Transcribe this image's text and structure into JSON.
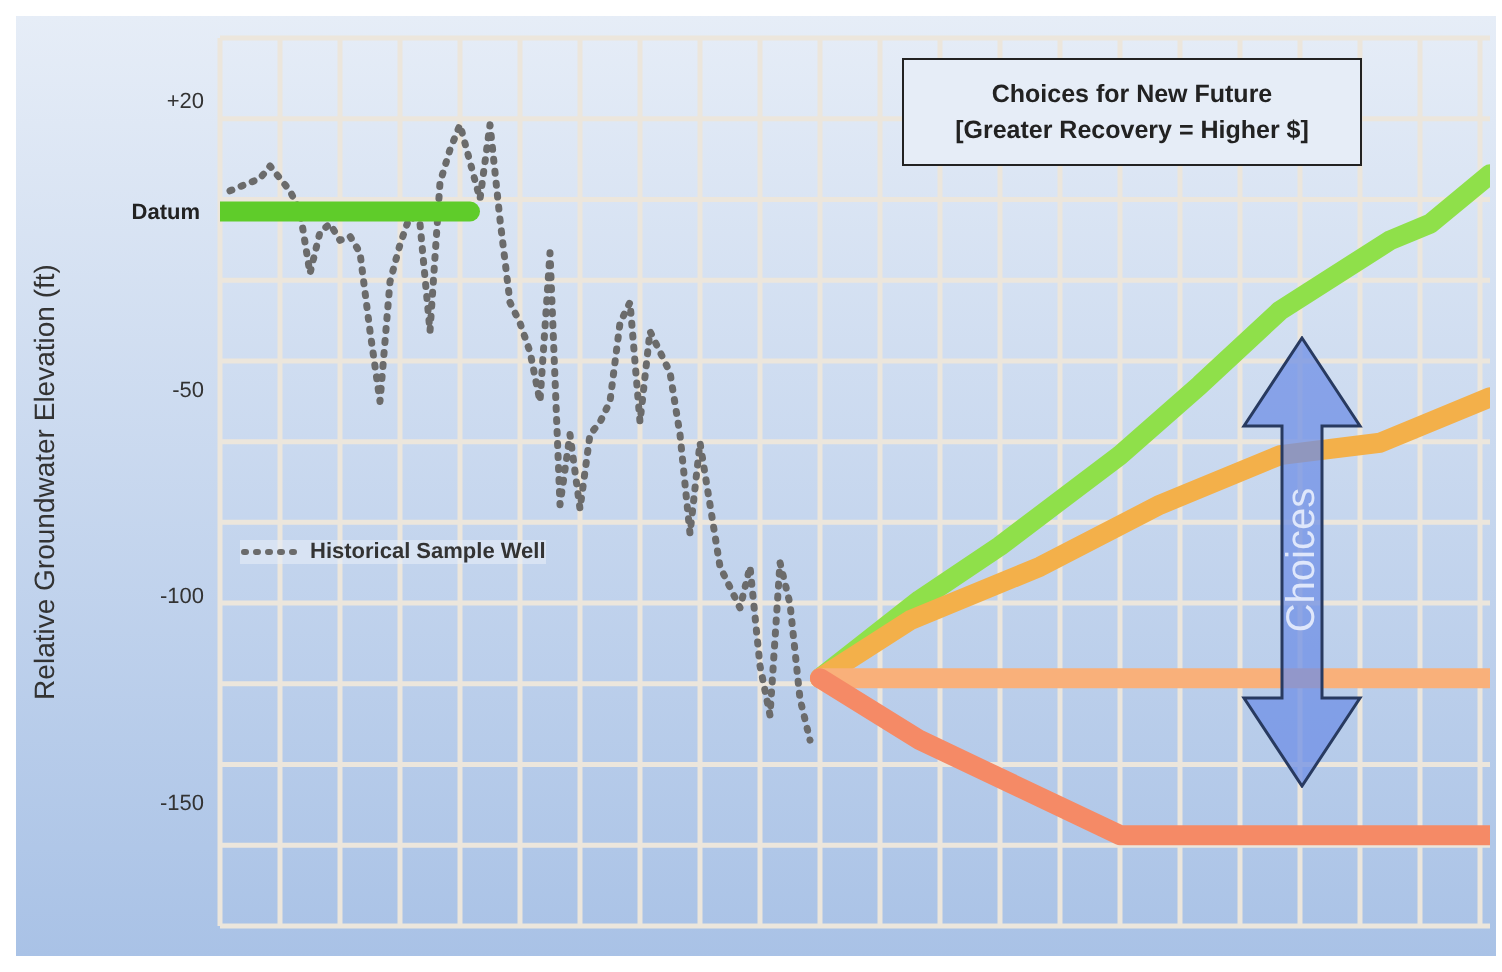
{
  "chart_data": {
    "type": "line",
    "title": "Choices for New Future",
    "subtitle": "[Greater Recovery = Higher $]",
    "ylabel": "Relative Groundwater Elevation (ft)",
    "annotations": [
      "Choices"
    ],
    "categories": [
      null,
      null,
      null,
      null,
      null,
      null,
      null,
      null,
      null,
      null,
      null,
      null,
      null,
      null,
      null,
      null,
      null,
      null,
      null,
      null,
      null,
      null,
      null,
      null,
      null,
      null,
      null,
      null,
      null,
      null,
      null,
      null,
      null,
      null,
      null,
      null,
      null,
      null,
      null,
      null,
      null,
      null,
      null,
      null,
      null,
      null,
      null,
      null,
      null,
      null,
      null,
      null,
      null,
      null,
      null,
      null,
      null,
      null,
      null,
      null,
      null,
      null,
      null,
      null,
      null,
      null,
      null,
      null,
      null,
      null,
      null,
      null,
      null,
      null,
      null,
      null,
      null,
      null,
      null,
      null,
      null,
      null,
      null,
      null,
      null,
      null,
      null,
      null,
      null,
      null,
      null,
      null,
      null,
      null,
      null,
      null,
      null,
      null,
      null,
      null,
      null,
      null,
      null,
      null,
      null,
      null,
      null,
      null,
      null,
      null,
      null,
      null,
      null,
      null,
      null,
      null,
      null,
      null,
      null,
      null,
      null,
      null,
      null,
      null,
      null,
      null,
      null,
      null
    ],
    "ylim": [
      -180,
      35
    ],
    "yticks": [
      {
        "value": 20,
        "label": "+20"
      },
      -50,
      -100,
      -150
    ],
    "grid": true,
    "legend": "left",
    "marker": "none",
    "series": [
      {
        "name": "Historical Sample Well",
        "color": "#6b6b6b",
        "line_style": "dotted",
        "values": [
          null,
          -2,
          -1,
          0,
          1,
          4,
          1,
          -2,
          -7,
          -22,
          -12,
          -10,
          -14,
          -13,
          -17,
          -36,
          -53,
          -24,
          -15,
          -8,
          -10,
          -36,
          0,
          8,
          14,
          5,
          -4,
          14,
          -9,
          -29,
          -34,
          -41,
          -53,
          -17,
          -78,
          -61,
          -79,
          -61,
          -58,
          -53,
          -34,
          -29,
          -58,
          -36,
          -41,
          -46,
          -61,
          -85,
          -63,
          -78,
          -93,
          -98,
          -103,
          -93,
          -117,
          -129,
          -92,
          -102,
          -125,
          -135,
          null,
          null,
          null,
          null,
          null,
          null,
          null,
          null,
          null,
          null,
          null,
          null,
          null,
          null,
          null,
          null,
          null,
          null,
          null,
          null,
          null,
          null,
          null,
          null,
          null,
          null,
          null,
          null,
          null,
          null,
          null,
          null,
          null,
          null,
          null,
          null,
          null,
          null,
          null,
          null,
          null,
          null,
          null,
          null,
          null,
          null,
          null,
          null,
          null,
          null,
          null,
          null,
          null,
          null,
          null,
          null,
          null,
          null,
          null,
          null,
          null,
          null,
          null,
          null,
          null,
          null,
          null,
          null
        ]
      },
      {
        "name": "Datum",
        "color": "#5fcc2a",
        "line_style": "solid",
        "values": [
          -7,
          null,
          null,
          null,
          null,
          null,
          null,
          null,
          null,
          null,
          null,
          null,
          null,
          null,
          null,
          null,
          null,
          null,
          null,
          null,
          null,
          null,
          null,
          null,
          null,
          -7,
          null,
          null,
          null,
          null,
          null,
          null,
          null,
          null,
          null,
          null,
          null,
          null,
          null,
          null,
          null,
          null,
          null,
          null,
          null,
          null,
          null,
          null,
          null,
          null,
          null,
          null,
          null,
          null,
          null,
          null,
          null,
          null,
          null,
          null,
          null,
          null,
          null,
          null,
          null,
          null,
          null,
          null,
          null,
          null,
          null,
          null,
          null,
          null,
          null,
          null,
          null,
          null,
          null,
          null,
          null,
          null,
          null,
          null,
          null,
          null,
          null,
          null,
          null,
          null,
          null,
          null,
          null,
          null,
          null,
          null,
          null,
          null,
          null,
          null,
          null,
          null,
          null,
          null,
          null,
          null,
          null,
          null,
          null,
          null,
          null,
          null,
          null,
          null,
          null,
          null,
          null,
          null,
          null,
          null,
          null,
          null,
          null,
          null,
          null,
          null,
          null,
          null
        ]
      },
      {
        "color": "#8fe04a",
        "line_style": "solid",
        "values": [
          null,
          null,
          null,
          null,
          null,
          null,
          null,
          null,
          null,
          null,
          null,
          null,
          null,
          null,
          null,
          null,
          null,
          null,
          null,
          null,
          null,
          null,
          null,
          null,
          null,
          null,
          null,
          null,
          null,
          null,
          null,
          null,
          null,
          null,
          null,
          null,
          null,
          null,
          null,
          null,
          null,
          null,
          null,
          null,
          null,
          null,
          null,
          null,
          null,
          null,
          null,
          null,
          null,
          null,
          null,
          null,
          null,
          null,
          null,
          null,
          -120,
          null,
          null,
          null,
          null,
          null,
          null,
          null,
          null,
          null,
          -101,
          null,
          null,
          null,
          null,
          null,
          null,
          null,
          -88,
          null,
          null,
          null,
          null,
          null,
          null,
          null,
          null,
          null,
          null,
          null,
          -66,
          null,
          null,
          null,
          null,
          null,
          null,
          null,
          -49,
          null,
          null,
          null,
          null,
          null,
          null,
          null,
          -31,
          null,
          null,
          null,
          null,
          null,
          null,
          null,
          null,
          null,
          null,
          -14,
          null,
          null,
          null,
          -10,
          null,
          null,
          null,
          null,
          null,
          2
        ]
      },
      {
        "color": "#f3b04a",
        "line_style": "solid",
        "values": [
          null,
          null,
          null,
          null,
          null,
          null,
          null,
          null,
          null,
          null,
          null,
          null,
          null,
          null,
          null,
          null,
          null,
          null,
          null,
          null,
          null,
          null,
          null,
          null,
          null,
          null,
          null,
          null,
          null,
          null,
          null,
          null,
          null,
          null,
          null,
          null,
          null,
          null,
          null,
          null,
          null,
          null,
          null,
          null,
          null,
          null,
          null,
          null,
          null,
          null,
          null,
          null,
          null,
          null,
          null,
          null,
          null,
          null,
          null,
          null,
          -120,
          null,
          null,
          null,
          null,
          null,
          null,
          null,
          null,
          -106,
          null,
          null,
          null,
          null,
          null,
          null,
          null,
          null,
          null,
          null,
          null,
          null,
          -93,
          null,
          null,
          null,
          null,
          null,
          null,
          null,
          null,
          null,
          null,
          null,
          -78,
          null,
          null,
          null,
          null,
          null,
          null,
          null,
          null,
          null,
          null,
          null,
          -66,
          null,
          null,
          null,
          null,
          null,
          null,
          null,
          null,
          null,
          -63,
          null,
          null,
          null,
          -59,
          null,
          null,
          null,
          null,
          null,
          null,
          -52
        ]
      },
      {
        "color": "#f9b07a",
        "line_style": "solid",
        "values": [
          null,
          null,
          null,
          null,
          null,
          null,
          null,
          null,
          null,
          null,
          null,
          null,
          null,
          null,
          null,
          null,
          null,
          null,
          null,
          null,
          null,
          null,
          null,
          null,
          null,
          null,
          null,
          null,
          null,
          null,
          null,
          null,
          null,
          null,
          null,
          null,
          null,
          null,
          null,
          null,
          null,
          null,
          null,
          null,
          null,
          null,
          null,
          null,
          null,
          null,
          null,
          null,
          null,
          null,
          null,
          null,
          null,
          null,
          null,
          null,
          -120,
          null,
          null,
          null,
          null,
          null,
          null,
          null,
          null,
          null,
          null,
          null,
          null,
          null,
          null,
          null,
          null,
          null,
          null,
          null,
          null,
          null,
          null,
          null,
          null,
          null,
          null,
          null,
          null,
          null,
          null,
          null,
          null,
          null,
          null,
          null,
          null,
          null,
          null,
          null,
          null,
          null,
          null,
          null,
          null,
          null,
          null,
          null,
          null,
          null,
          null,
          null,
          null,
          null,
          null,
          null,
          null,
          null,
          null,
          null,
          null,
          null,
          null,
          null,
          null,
          null,
          null,
          -120
        ]
      },
      {
        "color": "#f58a66",
        "line_style": "solid",
        "values": [
          null,
          null,
          null,
          null,
          null,
          null,
          null,
          null,
          null,
          null,
          null,
          null,
          null,
          null,
          null,
          null,
          null,
          null,
          null,
          null,
          null,
          null,
          null,
          null,
          null,
          null,
          null,
          null,
          null,
          null,
          null,
          null,
          null,
          null,
          null,
          null,
          null,
          null,
          null,
          null,
          null,
          null,
          null,
          null,
          null,
          null,
          null,
          null,
          null,
          null,
          null,
          null,
          null,
          null,
          null,
          null,
          null,
          null,
          null,
          null,
          -120,
          null,
          null,
          null,
          null,
          null,
          null,
          null,
          null,
          null,
          -135,
          null,
          null,
          null,
          null,
          null,
          null,
          null,
          null,
          null,
          null,
          null,
          null,
          null,
          null,
          null,
          null,
          null,
          null,
          null,
          -158,
          null,
          null,
          null,
          null,
          null,
          null,
          null,
          null,
          null,
          null,
          null,
          null,
          null,
          null,
          null,
          null,
          null,
          null,
          null,
          null,
          null,
          null,
          null,
          null,
          null,
          null,
          null,
          null,
          null,
          null,
          null,
          null,
          null,
          null,
          null,
          null,
          -158
        ]
      }
    ]
  }
}
